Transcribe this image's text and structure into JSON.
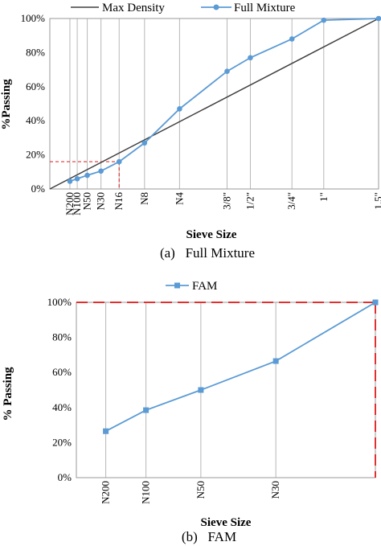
{
  "chart_data": [
    {
      "type": "line",
      "caption": "(a)   Full Mixture",
      "xlabel": "Sieve Size",
      "ylabel": "%Passing",
      "ylim": [
        0,
        100
      ],
      "y_ticks": [
        "0%",
        "20%",
        "40%",
        "60%",
        "80%",
        "100%"
      ],
      "x_scale": "power 0.45 (sieve size mm)",
      "sieve_labels": [
        "N200",
        "N100",
        "N50",
        "N30",
        "N16",
        "N8",
        "N4",
        "3/8\"",
        "1/2\"",
        "3/4\"",
        "1\"",
        "1.5\""
      ],
      "sieve_sizes_mm": [
        0.075,
        0.15,
        0.3,
        0.6,
        1.18,
        2.36,
        4.75,
        9.5,
        12.5,
        19,
        25,
        37.5
      ],
      "legend_position": "top",
      "series": [
        {
          "name": "Max Density",
          "color": "#404040",
          "marker": "none",
          "x": [
            0,
            37.5
          ],
          "y": [
            0,
            100
          ]
        },
        {
          "name": "Full Mixture",
          "color": "#5b9bd5",
          "marker": "circle",
          "x": [
            0.075,
            0.15,
            0.3,
            0.6,
            1.18,
            2.36,
            4.75,
            9.5,
            12.5,
            19,
            25,
            37.5
          ],
          "y": [
            4.5,
            6,
            8,
            10.5,
            16,
            27,
            47,
            69,
            77,
            88,
            99,
            100
          ]
        }
      ],
      "annotation": {
        "x": 1.18,
        "y": 16,
        "color": "#e03030",
        "style": "dashed"
      }
    },
    {
      "type": "line",
      "caption": "(b)   FAM",
      "xlabel": "Sieve Size",
      "ylabel": "% Passing",
      "ylim": [
        0,
        100
      ],
      "y_ticks": [
        "0%",
        "20%",
        "40%",
        "60%",
        "80%",
        "100%"
      ],
      "sieve_labels": [
        "N200",
        "N100",
        "N50",
        "N30"
      ],
      "sieve_sizes_mm": [
        0.075,
        0.15,
        0.3,
        0.6
      ],
      "legend_position": "top",
      "series": [
        {
          "name": "FAM",
          "color": "#5b9bd5",
          "marker": "square",
          "x": [
            0.075,
            0.15,
            0.3,
            0.6,
            1.18
          ],
          "y": [
            26.5,
            38.5,
            50,
            66.5,
            100
          ]
        }
      ],
      "annotation": {
        "x": 1.18,
        "y": 100,
        "color": "#e03030",
        "style": "dashed"
      }
    }
  ]
}
